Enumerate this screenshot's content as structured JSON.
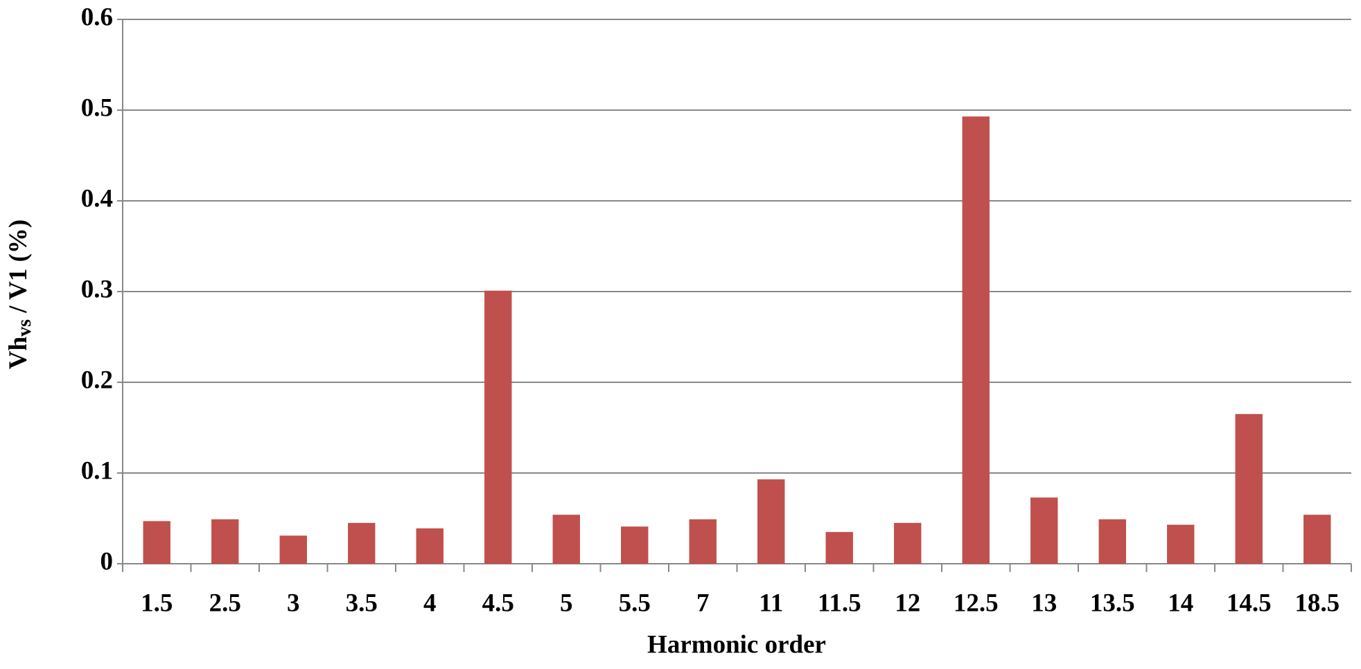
{
  "chart_data": {
    "type": "bar",
    "xlabel": "Harmonic order",
    "ylabel": [
      "Vh",
      "vs",
      " / V1 (%)"
    ],
    "categories": [
      "1.5",
      "2.5",
      "3",
      "3.5",
      "4",
      "4.5",
      "5",
      "5.5",
      "7",
      "11",
      "11.5",
      "12",
      "12.5",
      "13",
      "13.5",
      "14",
      "14.5",
      "18.5"
    ],
    "values": [
      0.047,
      0.049,
      0.031,
      0.045,
      0.039,
      0.301,
      0.054,
      0.041,
      0.049,
      0.093,
      0.035,
      0.045,
      0.493,
      0.073,
      0.049,
      0.043,
      0.165,
      0.054
    ],
    "color": "#c0504d",
    "ylim": [
      0,
      0.6
    ],
    "yticks": [
      0,
      0.1,
      0.2,
      0.3,
      0.4,
      0.5,
      0.6
    ],
    "grid": true
  }
}
